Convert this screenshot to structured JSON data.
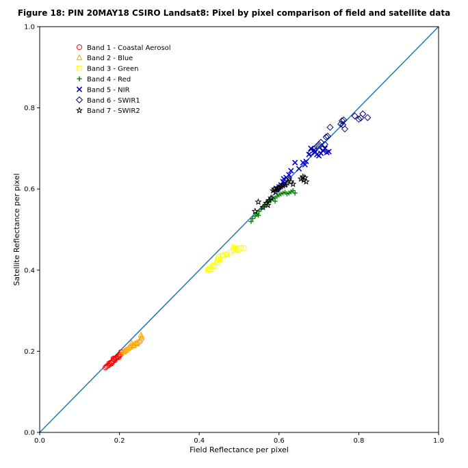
{
  "chart_data": {
    "type": "scatter",
    "title": "Figure 18: PIN 20MAY18 CSIRO Landsat8: Pixel by pixel comparison of field and satellite data",
    "xlabel": "Field Reflectance per pixel",
    "ylabel": "Satellite Reflectance per pixel",
    "xlim": [
      0.0,
      1.0
    ],
    "ylim": [
      0.0,
      1.0
    ],
    "xticks": [
      "0.0",
      "0.2",
      "0.4",
      "0.6",
      "0.8",
      "1.0"
    ],
    "yticks": [
      "0.0",
      "0.2",
      "0.4",
      "0.6",
      "0.8",
      "1.0"
    ],
    "grid": false,
    "legend_position": "upper-left",
    "reference_line": {
      "x": [
        0.0,
        1.0
      ],
      "y": [
        0.0,
        1.0
      ],
      "color": "#1f77b4"
    },
    "series": [
      {
        "name": "Band 1 - Coastal Aerosol",
        "marker": "circle",
        "color": "#ff0000",
        "points": [
          [
            0.165,
            0.16
          ],
          [
            0.168,
            0.163
          ],
          [
            0.172,
            0.165
          ],
          [
            0.176,
            0.168
          ],
          [
            0.178,
            0.172
          ],
          [
            0.182,
            0.174
          ],
          [
            0.184,
            0.176
          ],
          [
            0.186,
            0.18
          ],
          [
            0.188,
            0.178
          ],
          [
            0.19,
            0.182
          ],
          [
            0.192,
            0.184
          ],
          [
            0.195,
            0.186
          ],
          [
            0.197,
            0.188
          ],
          [
            0.2,
            0.19
          ],
          [
            0.202,
            0.192
          ],
          [
            0.204,
            0.198
          ],
          [
            0.185,
            0.182
          ],
          [
            0.18,
            0.17
          ],
          [
            0.198,
            0.185
          ],
          [
            0.174,
            0.17
          ]
        ]
      },
      {
        "name": "Band 2 - Blue",
        "marker": "triangle",
        "color": "#ffa500",
        "points": [
          [
            0.205,
            0.195
          ],
          [
            0.21,
            0.198
          ],
          [
            0.215,
            0.202
          ],
          [
            0.218,
            0.204
          ],
          [
            0.222,
            0.207
          ],
          [
            0.226,
            0.21
          ],
          [
            0.23,
            0.213
          ],
          [
            0.234,
            0.215
          ],
          [
            0.238,
            0.218
          ],
          [
            0.242,
            0.22
          ],
          [
            0.246,
            0.222
          ],
          [
            0.25,
            0.225
          ],
          [
            0.252,
            0.228
          ],
          [
            0.255,
            0.232
          ],
          [
            0.256,
            0.236
          ],
          [
            0.254,
            0.24
          ],
          [
            0.23,
            0.22
          ],
          [
            0.244,
            0.218
          ],
          [
            0.212,
            0.2
          ],
          [
            0.236,
            0.214
          ]
        ]
      },
      {
        "name": "Band 3 - Green",
        "marker": "square",
        "color": "#ffff00",
        "points": [
          [
            0.422,
            0.4
          ],
          [
            0.425,
            0.403
          ],
          [
            0.428,
            0.402
          ],
          [
            0.432,
            0.408
          ],
          [
            0.436,
            0.412
          ],
          [
            0.44,
            0.41
          ],
          [
            0.444,
            0.418
          ],
          [
            0.446,
            0.424
          ],
          [
            0.448,
            0.43
          ],
          [
            0.452,
            0.426
          ],
          [
            0.458,
            0.436
          ],
          [
            0.465,
            0.438
          ],
          [
            0.47,
            0.44
          ],
          [
            0.478,
            0.444
          ],
          [
            0.485,
            0.448
          ],
          [
            0.49,
            0.452
          ],
          [
            0.495,
            0.45
          ],
          [
            0.5,
            0.454
          ],
          [
            0.505,
            0.455
          ],
          [
            0.512,
            0.454
          ],
          [
            0.486,
            0.456
          ],
          [
            0.448,
            0.434
          ]
        ]
      },
      {
        "name": "Band 4 - Red",
        "marker": "plus",
        "color": "#008000",
        "points": [
          [
            0.53,
            0.52
          ],
          [
            0.534,
            0.527
          ],
          [
            0.54,
            0.533
          ],
          [
            0.545,
            0.538
          ],
          [
            0.55,
            0.545
          ],
          [
            0.555,
            0.55
          ],
          [
            0.56,
            0.555
          ],
          [
            0.565,
            0.562
          ],
          [
            0.57,
            0.566
          ],
          [
            0.575,
            0.57
          ],
          [
            0.58,
            0.573
          ],
          [
            0.585,
            0.576
          ],
          [
            0.59,
            0.578
          ],
          [
            0.595,
            0.582
          ],
          [
            0.6,
            0.585
          ],
          [
            0.605,
            0.588
          ],
          [
            0.61,
            0.59
          ],
          [
            0.615,
            0.592
          ],
          [
            0.62,
            0.588
          ],
          [
            0.625,
            0.59
          ],
          [
            0.63,
            0.593
          ],
          [
            0.635,
            0.596
          ],
          [
            0.64,
            0.59
          ],
          [
            0.548,
            0.535
          ],
          [
            0.59,
            0.57
          ]
        ]
      },
      {
        "name": "Band 5 - NIR",
        "marker": "x",
        "color": "#0000cc",
        "points": [
          [
            0.595,
            0.6
          ],
          [
            0.6,
            0.605
          ],
          [
            0.605,
            0.61
          ],
          [
            0.61,
            0.618
          ],
          [
            0.612,
            0.625
          ],
          [
            0.618,
            0.628
          ],
          [
            0.625,
            0.635
          ],
          [
            0.63,
            0.645
          ],
          [
            0.64,
            0.665
          ],
          [
            0.65,
            0.65
          ],
          [
            0.66,
            0.665
          ],
          [
            0.665,
            0.66
          ],
          [
            0.675,
            0.685
          ],
          [
            0.68,
            0.7
          ],
          [
            0.69,
            0.69
          ],
          [
            0.695,
            0.685
          ],
          [
            0.7,
            0.682
          ],
          [
            0.705,
            0.688
          ],
          [
            0.71,
            0.695
          ],
          [
            0.715,
            0.7
          ],
          [
            0.72,
            0.69
          ],
          [
            0.725,
            0.692
          ],
          [
            0.668,
            0.668
          ],
          [
            0.688,
            0.696
          ],
          [
            0.615,
            0.612
          ]
        ]
      },
      {
        "name": "Band 6 - SWIR1",
        "marker": "diamond",
        "color": "#000080",
        "points": [
          [
            0.68,
            0.69
          ],
          [
            0.69,
            0.7
          ],
          [
            0.695,
            0.705
          ],
          [
            0.7,
            0.71
          ],
          [
            0.705,
            0.715
          ],
          [
            0.71,
            0.7
          ],
          [
            0.715,
            0.71
          ],
          [
            0.718,
            0.728
          ],
          [
            0.722,
            0.73
          ],
          [
            0.728,
            0.752
          ],
          [
            0.755,
            0.76
          ],
          [
            0.758,
            0.768
          ],
          [
            0.762,
            0.77
          ],
          [
            0.765,
            0.748
          ],
          [
            0.79,
            0.78
          ],
          [
            0.8,
            0.772
          ],
          [
            0.805,
            0.775
          ],
          [
            0.81,
            0.785
          ],
          [
            0.822,
            0.776
          ],
          [
            0.76,
            0.758
          ]
        ]
      },
      {
        "name": "Band 7 - SWIR2",
        "marker": "star",
        "color": "#000000",
        "points": [
          [
            0.54,
            0.545
          ],
          [
            0.548,
            0.568
          ],
          [
            0.56,
            0.555
          ],
          [
            0.568,
            0.565
          ],
          [
            0.575,
            0.572
          ],
          [
            0.58,
            0.578
          ],
          [
            0.585,
            0.596
          ],
          [
            0.588,
            0.6
          ],
          [
            0.592,
            0.592
          ],
          [
            0.596,
            0.598
          ],
          [
            0.6,
            0.604
          ],
          [
            0.605,
            0.606
          ],
          [
            0.61,
            0.608
          ],
          [
            0.615,
            0.61
          ],
          [
            0.62,
            0.615
          ],
          [
            0.625,
            0.625
          ],
          [
            0.63,
            0.618
          ],
          [
            0.635,
            0.612
          ],
          [
            0.655,
            0.625
          ],
          [
            0.66,
            0.63
          ],
          [
            0.665,
            0.628
          ],
          [
            0.668,
            0.618
          ],
          [
            0.662,
            0.622
          ],
          [
            0.572,
            0.56
          ],
          [
            0.598,
            0.602
          ]
        ]
      }
    ]
  }
}
